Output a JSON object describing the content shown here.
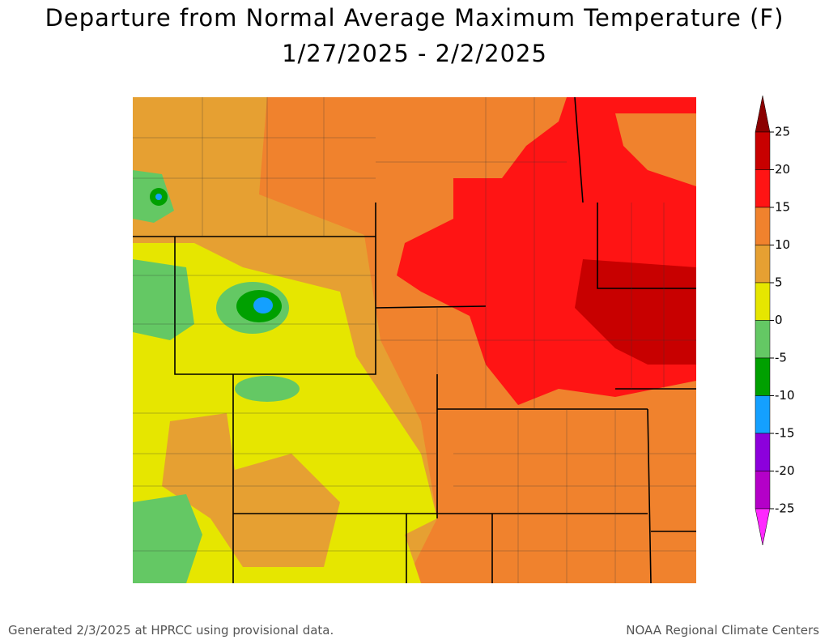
{
  "title": "Departure from Normal Average Maximum Temperature (F)",
  "subtitle": "1/27/2025 - 2/2/2025",
  "legend": {
    "ticks": [
      25,
      20,
      15,
      10,
      5,
      0,
      -5,
      -10,
      -15,
      -20,
      -25
    ],
    "colors": [
      "#8b0000",
      "#c80000",
      "#ff1414",
      "#f0822d",
      "#e6a032",
      "#e6e600",
      "#64c864",
      "#00a000",
      "#14a0ff",
      "#8c00dc",
      "#b400c8",
      "#ff28ff"
    ]
  },
  "footer": {
    "left": "Generated 2/3/2025 at HPRCC using provisional data.",
    "right": "NOAA Regional Climate Centers"
  }
}
